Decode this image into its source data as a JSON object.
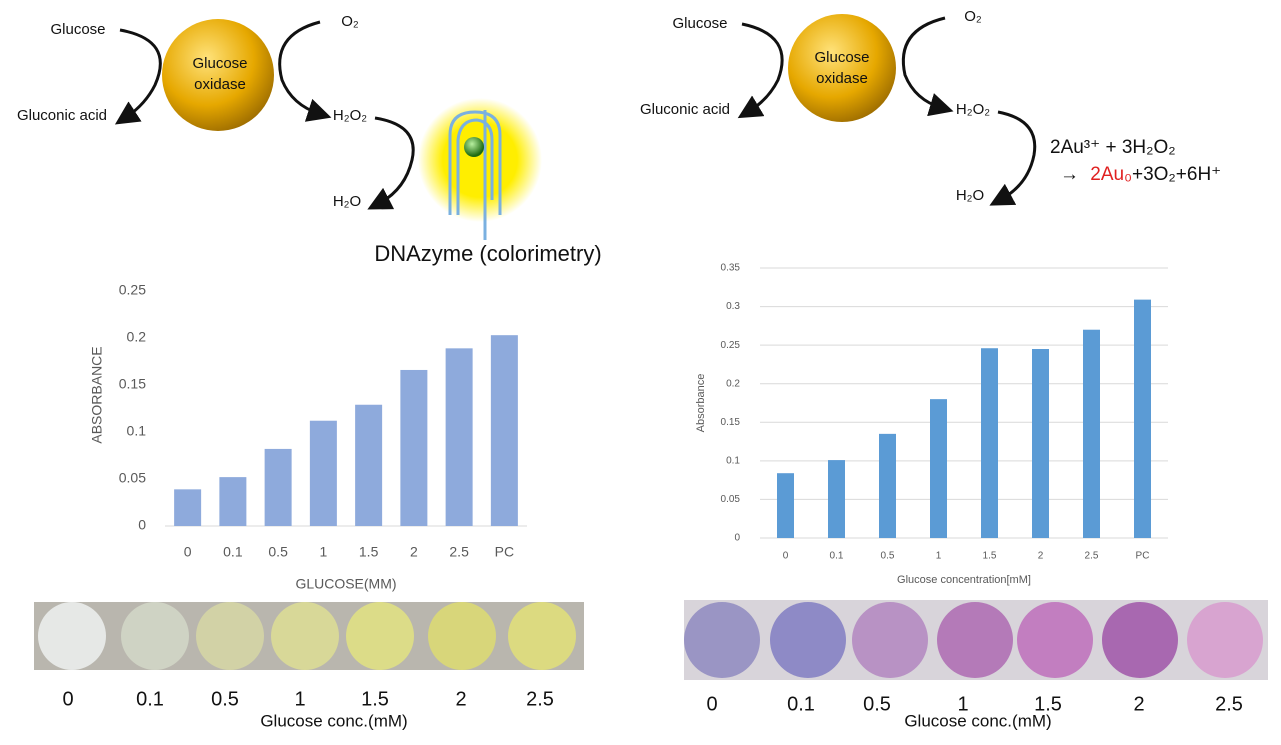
{
  "chart_data": [
    {
      "type": "bar",
      "y_label": "ABSORBANCE",
      "x_label": "GLUCOSE(MM)",
      "categories": [
        "0",
        "0.1",
        "0.5",
        "1",
        "1.5",
        "2",
        "2.5",
        "PC"
      ],
      "values": [
        0.039,
        0.052,
        0.082,
        0.112,
        0.129,
        0.166,
        0.189,
        0.203
      ],
      "color": "#8eaadc",
      "ylim": [
        0,
        0.25
      ],
      "yticks": [
        0,
        0.05,
        0.1,
        0.15,
        0.2,
        0.25
      ],
      "grid": false
    },
    {
      "type": "bar",
      "y_label": "Absorbance",
      "x_label": "Glucose concentration[mM]",
      "categories": [
        "0",
        "0.1",
        "0.5",
        "1",
        "1.5",
        "2",
        "2.5",
        "PC"
      ],
      "values": [
        0.084,
        0.101,
        0.135,
        0.18,
        0.246,
        0.245,
        0.27,
        0.309
      ],
      "color": "#5b9bd5",
      "ylim": [
        0,
        0.35
      ],
      "yticks": [
        0,
        0.05,
        0.1,
        0.15,
        0.2,
        0.25,
        0.3,
        0.35
      ],
      "grid": true
    }
  ],
  "diagrams": [
    {
      "substrate": "Glucose",
      "enzyme": [
        "Glucose",
        "oxidase"
      ],
      "oxygen": "O₂",
      "product": "Gluconic acid",
      "peroxide": "H₂O₂",
      "water": "H₂O",
      "detector": "DNAzyme (colorimetry)"
    },
    {
      "substrate": "Glucose",
      "enzyme": [
        "Glucose",
        "oxidase"
      ],
      "oxygen": "O₂",
      "product": "Gluconic acid",
      "peroxide": "H₂O₂",
      "water": "H₂O",
      "reaction": {
        "line1": "2Au³⁺ + 3H₂O₂",
        "arrow": "→",
        "highlight": "2Au₀",
        "rest": "+3O₂+6H⁺"
      }
    }
  ],
  "photos": [
    {
      "labels": [
        "0",
        "0.1",
        "0.5",
        "1",
        "1.5",
        "2",
        "2.5"
      ],
      "axis_label": "Glucose conc.(mM)"
    },
    {
      "labels": [
        "0",
        "0.1",
        "0.5",
        "1",
        "1.5",
        "2",
        "2.5"
      ],
      "axis_label": "Glucose conc.(mM)"
    }
  ]
}
